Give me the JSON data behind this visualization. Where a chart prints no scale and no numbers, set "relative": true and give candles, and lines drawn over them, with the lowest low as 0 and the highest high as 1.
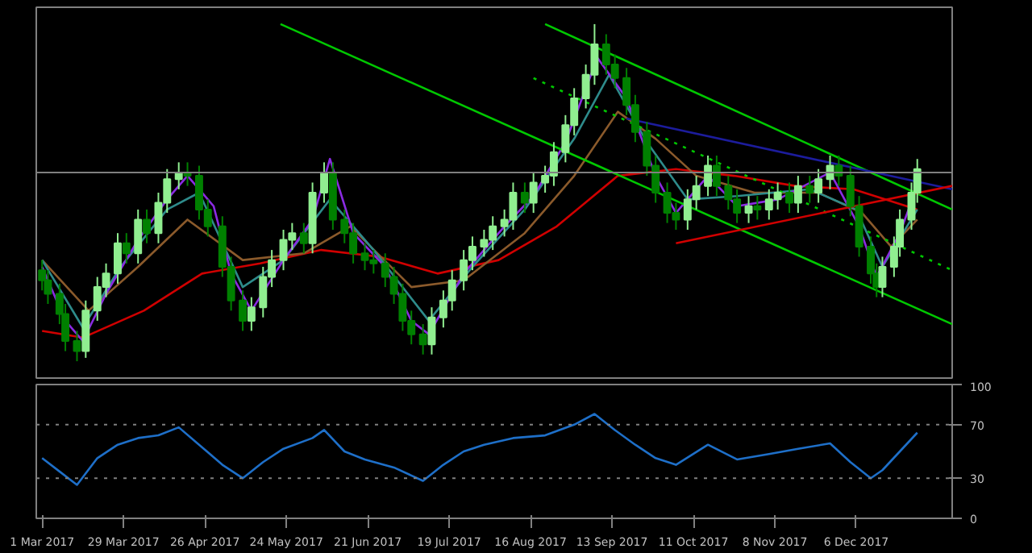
{
  "chart_data": [
    {
      "type": "candlestick",
      "relative": true,
      "grid": false,
      "xlim": [
        "2017-02-27",
        "2018-01-08"
      ],
      "x": [
        "2017-03-01",
        "2017-03-03",
        "2017-03-07",
        "2017-03-09",
        "2017-03-13",
        "2017-03-16",
        "2017-03-20",
        "2017-03-23",
        "2017-03-27",
        "2017-03-30",
        "2017-04-03",
        "2017-04-06",
        "2017-04-10",
        "2017-04-13",
        "2017-04-17",
        "2017-04-20",
        "2017-04-24",
        "2017-04-27",
        "2017-05-02",
        "2017-05-05",
        "2017-05-09",
        "2017-05-12",
        "2017-05-16",
        "2017-05-19",
        "2017-05-23",
        "2017-05-26",
        "2017-05-30",
        "2017-06-02",
        "2017-06-06",
        "2017-06-09",
        "2017-06-13",
        "2017-06-16",
        "2017-06-20",
        "2017-06-23",
        "2017-06-27",
        "2017-06-30",
        "2017-07-03",
        "2017-07-06",
        "2017-07-10",
        "2017-07-13",
        "2017-07-17",
        "2017-07-20",
        "2017-07-24",
        "2017-07-27",
        "2017-07-31",
        "2017-08-03",
        "2017-08-07",
        "2017-08-10",
        "2017-08-14",
        "2017-08-17",
        "2017-08-21",
        "2017-08-24",
        "2017-08-28",
        "2017-08-31",
        "2017-09-04",
        "2017-09-07",
        "2017-09-11",
        "2017-09-14",
        "2017-09-18",
        "2017-09-21",
        "2017-09-25",
        "2017-09-28",
        "2017-10-02",
        "2017-10-05",
        "2017-10-09",
        "2017-10-12",
        "2017-10-16",
        "2017-10-19",
        "2017-10-23",
        "2017-10-26",
        "2017-10-30",
        "2017-11-02",
        "2017-11-06",
        "2017-11-09",
        "2017-11-13",
        "2017-11-16",
        "2017-11-20",
        "2017-11-23",
        "2017-11-27",
        "2017-11-30",
        "2017-12-04",
        "2017-12-07",
        "2017-12-11",
        "2017-12-13",
        "2017-12-15",
        "2017-12-19",
        "2017-12-21",
        "2017-12-25",
        "2017-12-27"
      ],
      "ohlc": [
        [
          0.27,
          0.3,
          0.21,
          0.24
        ],
        [
          0.24,
          0.27,
          0.17,
          0.2
        ],
        [
          0.2,
          0.23,
          0.11,
          0.14
        ],
        [
          0.14,
          0.17,
          0.03,
          0.06
        ],
        [
          0.06,
          0.09,
          0,
          0.03
        ],
        [
          0.03,
          0.18,
          0.01,
          0.15
        ],
        [
          0.15,
          0.25,
          0.12,
          0.22
        ],
        [
          0.22,
          0.29,
          0.19,
          0.26
        ],
        [
          0.26,
          0.38,
          0.23,
          0.35
        ],
        [
          0.35,
          0.38,
          0.29,
          0.32
        ],
        [
          0.32,
          0.45,
          0.29,
          0.42
        ],
        [
          0.42,
          0.45,
          0.35,
          0.38
        ],
        [
          0.38,
          0.5,
          0.35,
          0.47
        ],
        [
          0.47,
          0.57,
          0.44,
          0.54
        ],
        [
          0.54,
          0.59,
          0.51,
          0.56
        ],
        [
          0.56,
          0.59,
          0.52,
          0.55
        ],
        [
          0.55,
          0.58,
          0.42,
          0.45
        ],
        [
          0.45,
          0.48,
          0.37,
          0.4
        ],
        [
          0.4,
          0.43,
          0.25,
          0.28
        ],
        [
          0.28,
          0.31,
          0.15,
          0.18
        ],
        [
          0.18,
          0.21,
          0.09,
          0.12
        ],
        [
          0.12,
          0.19,
          0.09,
          0.16
        ],
        [
          0.16,
          0.28,
          0.13,
          0.25
        ],
        [
          0.25,
          0.33,
          0.22,
          0.3
        ],
        [
          0.3,
          0.39,
          0.27,
          0.36
        ],
        [
          0.36,
          0.41,
          0.33,
          0.38
        ],
        [
          0.38,
          0.41,
          0.32,
          0.35
        ],
        [
          0.35,
          0.53,
          0.32,
          0.5
        ],
        [
          0.5,
          0.59,
          0.47,
          0.56
        ],
        [
          0.56,
          0.59,
          0.39,
          0.42
        ],
        [
          0.42,
          0.45,
          0.35,
          0.38
        ],
        [
          0.38,
          0.41,
          0.29,
          0.32
        ],
        [
          0.32,
          0.35,
          0.27,
          0.3
        ],
        [
          0.3,
          0.33,
          0.26,
          0.29
        ],
        [
          0.29,
          0.32,
          0.22,
          0.25
        ],
        [
          0.25,
          0.28,
          0.17,
          0.2
        ],
        [
          0.2,
          0.23,
          0.09,
          0.12
        ],
        [
          0.12,
          0.15,
          0.05,
          0.08
        ],
        [
          0.08,
          0.11,
          0.02,
          0.05
        ],
        [
          0.05,
          0.16,
          0.02,
          0.13
        ],
        [
          0.13,
          0.21,
          0.1,
          0.18
        ],
        [
          0.18,
          0.27,
          0.15,
          0.24
        ],
        [
          0.24,
          0.33,
          0.21,
          0.3
        ],
        [
          0.3,
          0.37,
          0.27,
          0.34
        ],
        [
          0.34,
          0.39,
          0.31,
          0.36
        ],
        [
          0.36,
          0.43,
          0.33,
          0.4
        ],
        [
          0.4,
          0.45,
          0.37,
          0.42
        ],
        [
          0.42,
          0.53,
          0.39,
          0.5
        ],
        [
          0.5,
          0.53,
          0.44,
          0.47
        ],
        [
          0.47,
          0.56,
          0.44,
          0.53
        ],
        [
          0.53,
          0.58,
          0.5,
          0.55
        ],
        [
          0.55,
          0.65,
          0.52,
          0.62
        ],
        [
          0.62,
          0.73,
          0.59,
          0.7
        ],
        [
          0.7,
          0.81,
          0.67,
          0.78
        ],
        [
          0.78,
          0.88,
          0.75,
          0.85
        ],
        [
          0.85,
          1,
          0.82,
          0.94
        ],
        [
          0.94,
          0.97,
          0.85,
          0.88
        ],
        [
          0.88,
          0.91,
          0.81,
          0.84
        ],
        [
          0.84,
          0.87,
          0.73,
          0.76
        ],
        [
          0.76,
          0.79,
          0.65,
          0.68
        ],
        [
          0.68,
          0.71,
          0.55,
          0.58
        ],
        [
          0.58,
          0.61,
          0.47,
          0.5
        ],
        [
          0.5,
          0.53,
          0.41,
          0.44
        ],
        [
          0.44,
          0.47,
          0.39,
          0.42
        ],
        [
          0.42,
          0.51,
          0.39,
          0.48
        ],
        [
          0.48,
          0.55,
          0.45,
          0.52
        ],
        [
          0.52,
          0.61,
          0.49,
          0.58
        ],
        [
          0.58,
          0.61,
          0.49,
          0.52
        ],
        [
          0.52,
          0.55,
          0.45,
          0.48
        ],
        [
          0.48,
          0.51,
          0.41,
          0.44
        ],
        [
          0.44,
          0.49,
          0.41,
          0.46
        ],
        [
          0.46,
          0.49,
          0.42,
          0.45
        ],
        [
          0.45,
          0.51,
          0.42,
          0.48
        ],
        [
          0.48,
          0.53,
          0.45,
          0.5
        ],
        [
          0.5,
          0.53,
          0.44,
          0.47
        ],
        [
          0.47,
          0.55,
          0.44,
          0.52
        ],
        [
          0.52,
          0.55,
          0.47,
          0.5
        ],
        [
          0.5,
          0.57,
          0.47,
          0.54
        ],
        [
          0.54,
          0.61,
          0.51,
          0.58
        ],
        [
          0.58,
          0.61,
          0.52,
          0.55
        ],
        [
          0.55,
          0.58,
          0.43,
          0.46
        ],
        [
          0.46,
          0.49,
          0.31,
          0.34
        ],
        [
          0.34,
          0.37,
          0.23,
          0.26
        ],
        [
          0.26,
          0.29,
          0.19,
          0.22
        ],
        [
          0.22,
          0.31,
          0.19,
          0.28
        ],
        [
          0.28,
          0.37,
          0.25,
          0.34
        ],
        [
          0.34,
          0.45,
          0.31,
          0.42
        ],
        [
          0.42,
          0.53,
          0.39,
          0.5
        ],
        [
          0.5,
          0.6,
          0.47,
          0.57
        ]
      ],
      "colors": [
        "#008000",
        "#008000",
        "#008000",
        "#008000",
        "#008000",
        "#90ee90",
        "#90ee90",
        "#90ee90",
        "#90ee90",
        "#008000",
        "#90ee90",
        "#008000",
        "#90ee90",
        "#90ee90",
        "#90ee90",
        "#008000",
        "#008000",
        "#008000",
        "#008000",
        "#008000",
        "#008000",
        "#90ee90",
        "#90ee90",
        "#90ee90",
        "#90ee90",
        "#90ee90",
        "#008000",
        "#90ee90",
        "#90ee90",
        "#008000",
        "#008000",
        "#008000",
        "#008000",
        "#008000",
        "#008000",
        "#008000",
        "#008000",
        "#008000",
        "#008000",
        "#90ee90",
        "#90ee90",
        "#90ee90",
        "#90ee90",
        "#90ee90",
        "#90ee90",
        "#90ee90",
        "#90ee90",
        "#90ee90",
        "#008000",
        "#90ee90",
        "#90ee90",
        "#90ee90",
        "#90ee90",
        "#90ee90",
        "#90ee90",
        "#90ee90",
        "#008000",
        "#008000",
        "#008000",
        "#008000",
        "#008000",
        "#008000",
        "#008000",
        "#008000",
        "#90ee90",
        "#90ee90",
        "#90ee90",
        "#008000",
        "#008000",
        "#008000",
        "#90ee90",
        "#008000",
        "#90ee90",
        "#90ee90",
        "#008000",
        "#90ee90",
        "#008000",
        "#90ee90",
        "#90ee90",
        "#008000",
        "#008000",
        "#008000",
        "#008000",
        "#008000",
        "#90ee90",
        "#90ee90",
        "#90ee90",
        "#90ee90",
        "#90ee90"
      ],
      "series": [
        {
          "type": "line",
          "color": "#d00000",
          "x": [
            "2017-03-01",
            "2017-03-15",
            "2017-04-05",
            "2017-04-25",
            "2017-05-15",
            "2017-06-05",
            "2017-06-25",
            "2017-07-15",
            "2017-08-05",
            "2017-08-25",
            "2017-09-15",
            "2017-10-05",
            "2017-10-25",
            "2017-11-15",
            "2017-12-05",
            "2017-12-27"
          ],
          "values": [
            0.09,
            0.07,
            0.15,
            0.26,
            0.29,
            0.33,
            0.31,
            0.26,
            0.3,
            0.4,
            0.55,
            0.57,
            0.55,
            0.52,
            0.51,
            0.45
          ]
        },
        {
          "type": "line",
          "color": "#8b5a2b",
          "x": [
            "2017-03-01",
            "2017-03-17",
            "2017-04-03",
            "2017-04-20",
            "2017-05-09",
            "2017-05-30",
            "2017-06-15",
            "2017-07-06",
            "2017-07-24",
            "2017-08-14",
            "2017-08-31",
            "2017-09-15",
            "2017-09-28",
            "2017-10-12",
            "2017-11-01",
            "2017-11-23",
            "2017-12-08",
            "2017-12-18",
            "2017-12-27"
          ],
          "values": [
            0.3,
            0.15,
            0.28,
            0.42,
            0.3,
            0.32,
            0.4,
            0.22,
            0.24,
            0.38,
            0.55,
            0.74,
            0.66,
            0.55,
            0.5,
            0.5,
            0.44,
            0.34,
            0.42
          ]
        },
        {
          "type": "line",
          "color": "#2e8b8b",
          "x": [
            "2017-03-01",
            "2017-03-15",
            "2017-03-28",
            "2017-04-13",
            "2017-04-24",
            "2017-05-09",
            "2017-05-23",
            "2017-06-08",
            "2017-06-23",
            "2017-07-12",
            "2017-07-27",
            "2017-08-14",
            "2017-08-31",
            "2017-09-12",
            "2017-09-25",
            "2017-10-09",
            "2017-10-26",
            "2017-11-20",
            "2017-12-06",
            "2017-12-15",
            "2017-12-27"
          ],
          "values": [
            0.3,
            0.1,
            0.28,
            0.45,
            0.5,
            0.22,
            0.3,
            0.48,
            0.33,
            0.12,
            0.28,
            0.45,
            0.66,
            0.85,
            0.65,
            0.48,
            0.49,
            0.51,
            0.45,
            0.28,
            0.45
          ]
        },
        {
          "type": "line",
          "color": "#8a2be2",
          "x": [
            "2017-03-01",
            "2017-03-09",
            "2017-03-15",
            "2017-03-23",
            "2017-04-03",
            "2017-04-13",
            "2017-04-20",
            "2017-04-29",
            "2017-05-05",
            "2017-05-12",
            "2017-05-23",
            "2017-06-02",
            "2017-06-08",
            "2017-06-16",
            "2017-06-27",
            "2017-07-06",
            "2017-07-12",
            "2017-07-24",
            "2017-08-07",
            "2017-08-17",
            "2017-08-28",
            "2017-09-08",
            "2017-09-18",
            "2017-09-28",
            "2017-10-05",
            "2017-10-16",
            "2017-10-26",
            "2017-11-09",
            "2017-11-27",
            "2017-12-07",
            "2017-12-13",
            "2017-12-21",
            "2017-12-27"
          ],
          "values": [
            0.28,
            0.12,
            0.06,
            0.2,
            0.36,
            0.48,
            0.55,
            0.46,
            0.26,
            0.15,
            0.3,
            0.42,
            0.6,
            0.38,
            0.28,
            0.12,
            0.08,
            0.26,
            0.4,
            0.49,
            0.65,
            0.9,
            0.78,
            0.55,
            0.44,
            0.55,
            0.46,
            0.48,
            0.56,
            0.4,
            0.25,
            0.38,
            0.52
          ]
        },
        {
          "type": "line",
          "color": "#00c800",
          "x": [
            "2017-05-22",
            "2018-01-08"
          ],
          "values": [
            1.0,
            0.11
          ]
        },
        {
          "type": "line",
          "color": "#00c800",
          "x": [
            "2017-08-21",
            "2018-01-08"
          ],
          "values": [
            1.0,
            0.45
          ]
        },
        {
          "type": "line",
          "color": "#00c800",
          "line_style": "dotted",
          "x": [
            "2017-08-17",
            "2018-01-08"
          ],
          "values": [
            0.84,
            0.27
          ]
        },
        {
          "type": "line",
          "color": "#1c1c9c",
          "x": [
            "2017-09-18",
            "2018-01-08"
          ],
          "values": [
            0.72,
            0.51
          ]
        },
        {
          "type": "line",
          "color": "#d00000",
          "x": [
            "2017-10-05",
            "2018-01-08"
          ],
          "values": [
            0.35,
            0.52
          ]
        }
      ],
      "ref_lines": [
        {
          "axis": "y",
          "value": 0.56,
          "color": "#808080"
        }
      ]
    },
    {
      "type": "line",
      "grid": false,
      "xlim": [
        "2017-02-27",
        "2018-01-08"
      ],
      "ylim": [
        0,
        100
      ],
      "yticks": [
        0,
        30,
        70,
        100
      ],
      "xticks": [
        {
          "value": "2017-03-01",
          "label": "1 Mar 2017"
        },
        {
          "value": "2017-03-29",
          "label": "29 Mar 2017"
        },
        {
          "value": "2017-04-26",
          "label": "26 Apr 2017"
        },
        {
          "value": "2017-05-24",
          "label": "24 May 2017"
        },
        {
          "value": "2017-06-21",
          "label": "21 Jun 2017"
        },
        {
          "value": "2017-07-19",
          "label": "19 Jul 2017"
        },
        {
          "value": "2017-08-16",
          "label": "16 Aug 2017"
        },
        {
          "value": "2017-09-13",
          "label": "13 Sep 2017"
        },
        {
          "value": "2017-10-11",
          "label": "11 Oct 2017"
        },
        {
          "value": "2017-11-08",
          "label": "8 Nov 2017"
        },
        {
          "value": "2017-12-06",
          "label": "6 Dec 2017"
        }
      ],
      "series": [
        {
          "color": "#1e6fc8",
          "x": [
            "2017-03-01",
            "2017-03-07",
            "2017-03-13",
            "2017-03-20",
            "2017-03-27",
            "2017-04-03",
            "2017-04-10",
            "2017-04-17",
            "2017-04-24",
            "2017-05-02",
            "2017-05-09",
            "2017-05-16",
            "2017-05-23",
            "2017-06-02",
            "2017-06-06",
            "2017-06-13",
            "2017-06-20",
            "2017-06-30",
            "2017-07-10",
            "2017-07-17",
            "2017-07-24",
            "2017-07-31",
            "2017-08-10",
            "2017-08-21",
            "2017-08-31",
            "2017-09-07",
            "2017-09-14",
            "2017-09-21",
            "2017-09-28",
            "2017-10-05",
            "2017-10-16",
            "2017-10-26",
            "2017-11-06",
            "2017-11-16",
            "2017-11-27",
            "2017-12-04",
            "2017-12-11",
            "2017-12-15",
            "2017-12-21",
            "2017-12-27"
          ],
          "values": [
            45,
            35,
            25,
            45,
            55,
            60,
            62,
            68,
            55,
            40,
            30,
            42,
            52,
            60,
            66,
            50,
            44,
            38,
            28,
            40,
            50,
            55,
            60,
            62,
            70,
            78,
            66,
            55,
            45,
            40,
            55,
            44,
            48,
            52,
            56,
            42,
            30,
            36,
            50,
            64
          ]
        }
      ],
      "ref_lines": [
        {
          "axis": "y",
          "value": 70,
          "color": "#808080",
          "line_style": "dotted"
        },
        {
          "axis": "y",
          "value": 30,
          "color": "#808080",
          "line_style": "dotted"
        }
      ]
    }
  ]
}
